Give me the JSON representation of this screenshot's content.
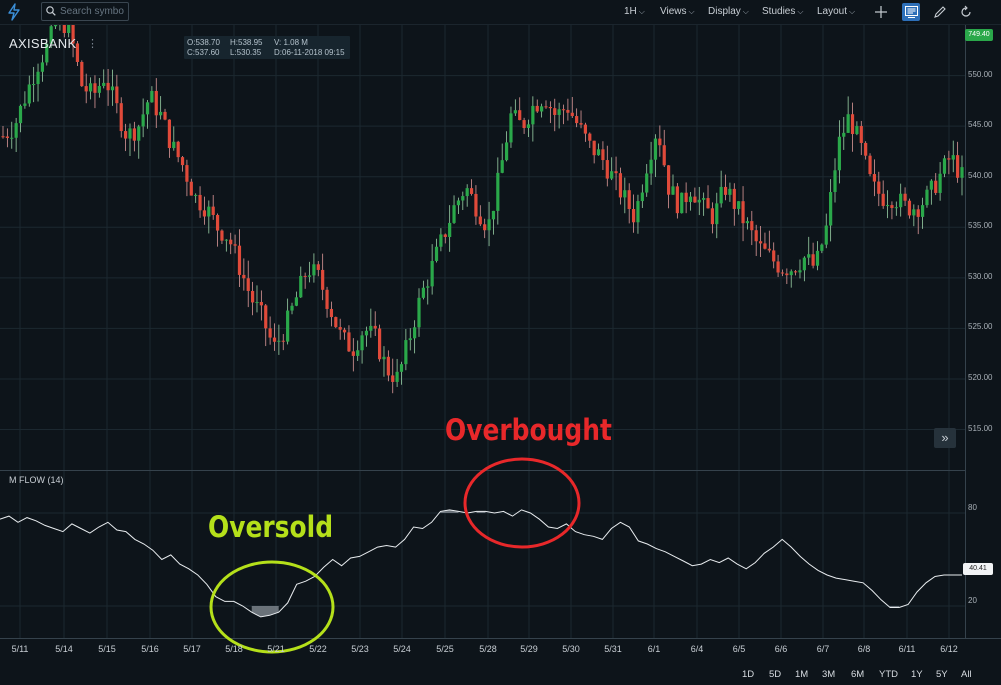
{
  "toolbar": {
    "search_placeholder": "Search symbol",
    "interval": "1H",
    "views": "Views",
    "display": "Display",
    "studies": "Studies",
    "layout": "Layout",
    "icons": [
      "lightning-icon",
      "search-icon",
      "plus-icon",
      "chart-book-icon",
      "pencil-icon",
      "refresh-icon"
    ]
  },
  "symbol": "AXISBANK",
  "legend": {
    "open": "O:538.70",
    "high": "H:538.95",
    "volume": "V: 1.08 M",
    "close": "C:537.60",
    "low": "L:530.35",
    "datetime": "D:06-11-2018 09:15"
  },
  "last_price": "749.40",
  "indicator": {
    "label": "M FLOW (14)",
    "last_value": "40.41",
    "ticks": [
      "80",
      "20"
    ]
  },
  "annotations": {
    "overbought": "Overbought",
    "oversold": "Oversold"
  },
  "colors": {
    "background": "#0d141a",
    "up": "#2aa84a",
    "down": "#e04a3a",
    "overbought": "#e8282a",
    "oversold": "#b5e01a"
  },
  "chart_data": {
    "type": "candlestick",
    "ylim": [
      511,
      555
    ],
    "price_ticks": [
      550,
      545,
      540,
      535,
      530,
      525,
      520,
      515
    ],
    "price_tick_labels": [
      "550.00",
      "545.00",
      "540.00",
      "535.00",
      "530.00",
      "525.00",
      "520.00",
      "515.00"
    ],
    "date_labels": [
      "5/11",
      "5/14",
      "5/15",
      "5/16",
      "5/17",
      "5/18",
      "5/21",
      "5/22",
      "5/23",
      "5/24",
      "5/25",
      "5/28",
      "5/29",
      "5/30",
      "5/31",
      "6/1",
      "6/4",
      "6/5",
      "6/6",
      "6/7",
      "6/8",
      "6/11",
      "6/12"
    ],
    "close_path": [
      544,
      545,
      548,
      551,
      553,
      556,
      554,
      549,
      548,
      550,
      547,
      544,
      545,
      548,
      546,
      543,
      541,
      538,
      537,
      535,
      534,
      531,
      528,
      526,
      523,
      525,
      528,
      531,
      530,
      527,
      524,
      523,
      525,
      524,
      521,
      520,
      524,
      528,
      531,
      534,
      537,
      539,
      537,
      535,
      540,
      546,
      545,
      547,
      548,
      546,
      547,
      545,
      543,
      542,
      540,
      538,
      536,
      541,
      545,
      539,
      537,
      539,
      537,
      536,
      539,
      537,
      535,
      533,
      532,
      531,
      531,
      532,
      531,
      535,
      543,
      546,
      543,
      539,
      538,
      538,
      537,
      537,
      538,
      540,
      542,
      540
    ],
    "mfi_range": [
      0,
      100
    ],
    "mfi_series": [
      76,
      78,
      74,
      77,
      75,
      72,
      70,
      68,
      73,
      70,
      67,
      71,
      74,
      69,
      68,
      63,
      60,
      56,
      50,
      53,
      47,
      44,
      40,
      34,
      26,
      23,
      23,
      20,
      16,
      13,
      14,
      16,
      22,
      34,
      36,
      39,
      45,
      50,
      46,
      51,
      52,
      55,
      58,
      59,
      58,
      63,
      71,
      70,
      74,
      81,
      82,
      81,
      80,
      81,
      81,
      80,
      81,
      78,
      82,
      80,
      76,
      71,
      70,
      73,
      68,
      66,
      65,
      63,
      70,
      74,
      71,
      62,
      60,
      57,
      55,
      52,
      49,
      46,
      47,
      50,
      48,
      51,
      47,
      44,
      48,
      54,
      58,
      63,
      58,
      52,
      47,
      43,
      40,
      38,
      37,
      36,
      35,
      30,
      24,
      19,
      19,
      21,
      29,
      35,
      39,
      40,
      40,
      40
    ]
  }
}
